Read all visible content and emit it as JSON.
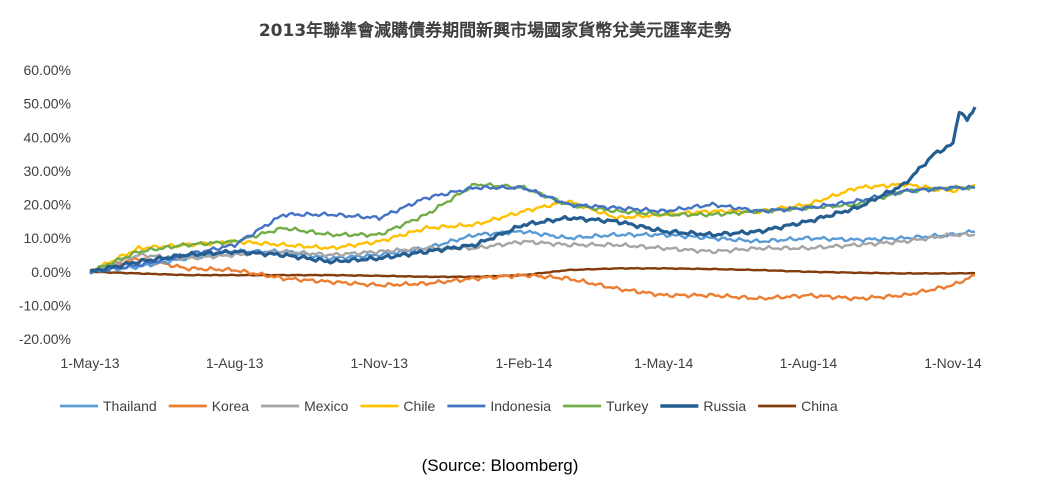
{
  "chart_data": {
    "type": "line",
    "title": "2013年聯準會減購債券期間新興市場國家貨幣兌美元匯率走勢",
    "xlabel": "",
    "ylabel": "",
    "x_start": "2013-05-01",
    "x_end": "2014-11-15",
    "x_ticks": [
      "1-May-13",
      "1-Aug-13",
      "1-Nov-13",
      "1-Feb-14",
      "1-May-14",
      "1-Aug-14",
      "1-Nov-14"
    ],
    "x_tick_dates": [
      "2013-05-01",
      "2013-08-01",
      "2013-11-01",
      "2014-02-01",
      "2014-05-01",
      "2014-08-01",
      "2014-11-01"
    ],
    "y_ticks": [
      "60.00%",
      "50.00%",
      "40.00%",
      "30.00%",
      "20.00%",
      "10.00%",
      "0.00%",
      "-10.00%",
      "-20.00%"
    ],
    "ylim": [
      -20,
      60
    ],
    "grid": false,
    "legend_position": "bottom",
    "series": [
      {
        "name": "Thailand",
        "color": "#5B9BD5",
        "points": [
          [
            "2013-05-01",
            0
          ],
          [
            "2013-06-01",
            1.5
          ],
          [
            "2013-07-01",
            4
          ],
          [
            "2013-08-01",
            6
          ],
          [
            "2013-09-01",
            6
          ],
          [
            "2013-10-01",
            4
          ],
          [
            "2013-11-01",
            5
          ],
          [
            "2013-12-01",
            7
          ],
          [
            "2014-01-01",
            11
          ],
          [
            "2014-02-01",
            12
          ],
          [
            "2014-03-01",
            10
          ],
          [
            "2014-04-01",
            11
          ],
          [
            "2014-05-01",
            11
          ],
          [
            "2014-06-01",
            10
          ],
          [
            "2014-07-01",
            9
          ],
          [
            "2014-08-01",
            10
          ],
          [
            "2014-09-01",
            9.5
          ],
          [
            "2014-10-01",
            10
          ],
          [
            "2014-11-01",
            11
          ],
          [
            "2014-11-15",
            12
          ]
        ]
      },
      {
        "name": "Korea",
        "color": "#ED7D31",
        "points": [
          [
            "2013-05-01",
            0
          ],
          [
            "2013-06-01",
            4
          ],
          [
            "2013-07-01",
            1
          ],
          [
            "2013-08-01",
            0.5
          ],
          [
            "2013-09-01",
            -2
          ],
          [
            "2013-10-01",
            -3
          ],
          [
            "2013-11-01",
            -4
          ],
          [
            "2013-12-01",
            -3.5
          ],
          [
            "2014-01-01",
            -2
          ],
          [
            "2014-02-01",
            -1
          ],
          [
            "2014-03-01",
            -2
          ],
          [
            "2014-04-01",
            -5
          ],
          [
            "2014-05-01",
            -7
          ],
          [
            "2014-06-01",
            -7
          ],
          [
            "2014-07-01",
            -8
          ],
          [
            "2014-08-01",
            -7
          ],
          [
            "2014-09-01",
            -8
          ],
          [
            "2014-10-01",
            -7
          ],
          [
            "2014-11-01",
            -4
          ],
          [
            "2014-11-15",
            -1
          ]
        ]
      },
      {
        "name": "Mexico",
        "color": "#A5A5A5",
        "points": [
          [
            "2013-05-01",
            0
          ],
          [
            "2013-06-01",
            5
          ],
          [
            "2013-07-01",
            4
          ],
          [
            "2013-08-01",
            5
          ],
          [
            "2013-09-01",
            6
          ],
          [
            "2013-10-01",
            5
          ],
          [
            "2013-11-01",
            6
          ],
          [
            "2013-12-01",
            7
          ],
          [
            "2014-01-01",
            7
          ],
          [
            "2014-02-01",
            9
          ],
          [
            "2014-03-01",
            8
          ],
          [
            "2014-04-01",
            8
          ],
          [
            "2014-05-01",
            7
          ],
          [
            "2014-06-01",
            6
          ],
          [
            "2014-07-01",
            7
          ],
          [
            "2014-08-01",
            7
          ],
          [
            "2014-09-01",
            8
          ],
          [
            "2014-10-01",
            9
          ],
          [
            "2014-11-01",
            11
          ],
          [
            "2014-11-15",
            11
          ]
        ]
      },
      {
        "name": "Chile",
        "color": "#FFC000",
        "points": [
          [
            "2013-05-01",
            0
          ],
          [
            "2013-06-01",
            7
          ],
          [
            "2013-07-01",
            8
          ],
          [
            "2013-08-01",
            9
          ],
          [
            "2013-09-01",
            8
          ],
          [
            "2013-10-01",
            7
          ],
          [
            "2013-11-01",
            9
          ],
          [
            "2013-12-01",
            13
          ],
          [
            "2014-01-01",
            14
          ],
          [
            "2014-02-01",
            18
          ],
          [
            "2014-03-01",
            21
          ],
          [
            "2014-04-01",
            16
          ],
          [
            "2014-05-01",
            17
          ],
          [
            "2014-06-01",
            18
          ],
          [
            "2014-07-01",
            18
          ],
          [
            "2014-08-01",
            20
          ],
          [
            "2014-09-01",
            25
          ],
          [
            "2014-10-01",
            26
          ],
          [
            "2014-11-01",
            24
          ],
          [
            "2014-11-15",
            26
          ]
        ]
      },
      {
        "name": "Indonesia",
        "color": "#4472C4",
        "points": [
          [
            "2013-05-01",
            0
          ],
          [
            "2013-06-01",
            2
          ],
          [
            "2013-07-01",
            5
          ],
          [
            "2013-08-01",
            8
          ],
          [
            "2013-09-01",
            17
          ],
          [
            "2013-10-01",
            17
          ],
          [
            "2013-11-01",
            16
          ],
          [
            "2013-12-01",
            22
          ],
          [
            "2014-01-01",
            25
          ],
          [
            "2014-02-01",
            25
          ],
          [
            "2014-03-01",
            20
          ],
          [
            "2014-04-01",
            19
          ],
          [
            "2014-05-01",
            18
          ],
          [
            "2014-06-01",
            20
          ],
          [
            "2014-07-01",
            18
          ],
          [
            "2014-08-01",
            19
          ],
          [
            "2014-09-01",
            21
          ],
          [
            "2014-10-01",
            24
          ],
          [
            "2014-11-01",
            25
          ],
          [
            "2014-11-15",
            25
          ]
        ]
      },
      {
        "name": "Turkey",
        "color": "#70AD47",
        "points": [
          [
            "2013-05-01",
            0
          ],
          [
            "2013-06-01",
            6
          ],
          [
            "2013-07-01",
            8
          ],
          [
            "2013-08-01",
            9
          ],
          [
            "2013-09-01",
            13
          ],
          [
            "2013-10-01",
            11
          ],
          [
            "2013-11-01",
            11
          ],
          [
            "2013-12-01",
            17
          ],
          [
            "2014-01-01",
            26
          ],
          [
            "2014-02-01",
            25
          ],
          [
            "2014-03-01",
            20
          ],
          [
            "2014-04-01",
            18
          ],
          [
            "2014-05-01",
            17
          ],
          [
            "2014-06-01",
            17
          ],
          [
            "2014-07-01",
            18
          ],
          [
            "2014-08-01",
            19
          ],
          [
            "2014-09-01",
            20
          ],
          [
            "2014-10-01",
            24
          ],
          [
            "2014-11-01",
            25
          ],
          [
            "2014-11-15",
            25
          ]
        ]
      },
      {
        "name": "Russia",
        "color": "#255E91",
        "points": [
          [
            "2013-05-01",
            0
          ],
          [
            "2013-06-01",
            3
          ],
          [
            "2013-07-01",
            5
          ],
          [
            "2013-08-01",
            6
          ],
          [
            "2013-09-01",
            5
          ],
          [
            "2013-10-01",
            3
          ],
          [
            "2013-11-01",
            4
          ],
          [
            "2013-12-01",
            6
          ],
          [
            "2014-01-01",
            8
          ],
          [
            "2014-02-01",
            14
          ],
          [
            "2014-03-01",
            16
          ],
          [
            "2014-04-01",
            15
          ],
          [
            "2014-05-01",
            12
          ],
          [
            "2014-06-01",
            11
          ],
          [
            "2014-07-01",
            12
          ],
          [
            "2014-08-01",
            15
          ],
          [
            "2014-09-01",
            19
          ],
          [
            "2014-10-01",
            26
          ],
          [
            "2014-10-20",
            35
          ],
          [
            "2014-11-01",
            38
          ],
          [
            "2014-11-05",
            48
          ],
          [
            "2014-11-10",
            45
          ],
          [
            "2014-11-15",
            49
          ]
        ]
      },
      {
        "name": "China",
        "color": "#843C0C",
        "points": [
          [
            "2013-05-01",
            0
          ],
          [
            "2013-06-01",
            -0.5
          ],
          [
            "2013-07-01",
            -1
          ],
          [
            "2013-08-01",
            -1
          ],
          [
            "2013-09-01",
            -1
          ],
          [
            "2013-10-01",
            -1
          ],
          [
            "2013-11-01",
            -1.2
          ],
          [
            "2013-12-01",
            -1.5
          ],
          [
            "2014-01-01",
            -1.5
          ],
          [
            "2014-02-01",
            -1
          ],
          [
            "2014-03-01",
            0.5
          ],
          [
            "2014-04-01",
            1
          ],
          [
            "2014-05-01",
            1
          ],
          [
            "2014-06-01",
            0.8
          ],
          [
            "2014-07-01",
            0.5
          ],
          [
            "2014-08-01",
            0
          ],
          [
            "2014-09-01",
            -0.3
          ],
          [
            "2014-10-01",
            -0.5
          ],
          [
            "2014-11-01",
            -0.5
          ],
          [
            "2014-11-15",
            -0.4
          ]
        ]
      }
    ]
  },
  "source_note": "(Source: Bloomberg)"
}
